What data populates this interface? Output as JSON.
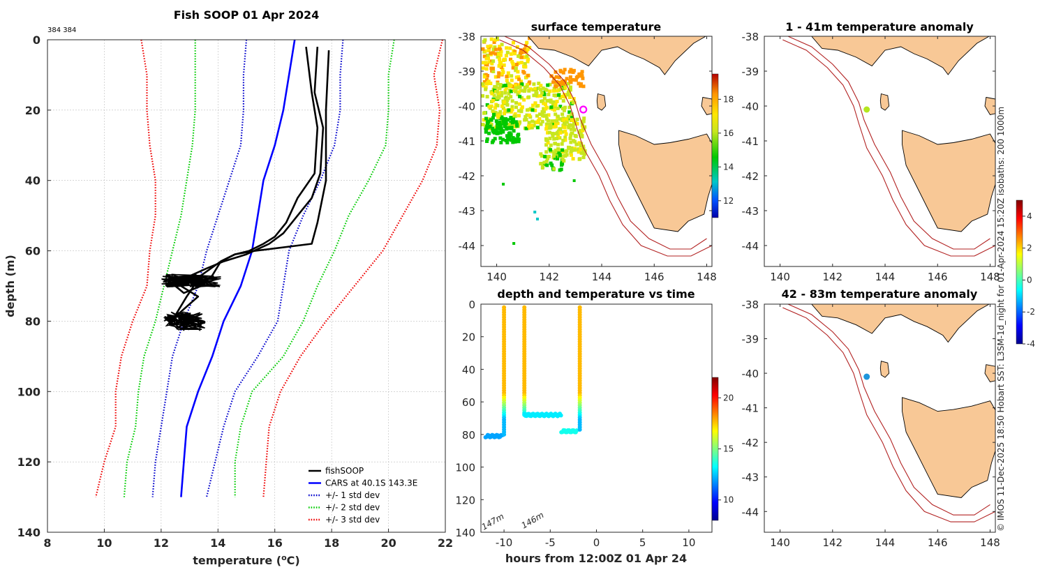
{
  "chart_data": [
    {
      "type": "line",
      "id": "profile",
      "title": "Fish SOOP 01 Apr 2024",
      "subtitle": "384 384",
      "xlabel": "temperature (",
      "xlabel_sup": "o",
      "xlabel_suffix": "C)",
      "ylabel": "depth (m)",
      "xlim": [
        8,
        22
      ],
      "ylim": [
        0,
        140
      ],
      "xticks": [
        8,
        10,
        12,
        14,
        16,
        18,
        20,
        22
      ],
      "yticks": [
        0,
        20,
        40,
        60,
        80,
        100,
        120,
        140
      ],
      "legend": [
        "fishSOOP",
        "CARS at 40.1S 143.3E",
        "+/- 1 std dev",
        "+/- 2 std dev",
        "+/- 3 std dev"
      ],
      "legend_position": "bottom-right",
      "series": [
        {
          "name": "CARS mean",
          "color": "#0000ff",
          "style": "solid",
          "points": [
            [
              16.7,
              0
            ],
            [
              16.5,
              10
            ],
            [
              16.3,
              20
            ],
            [
              16.0,
              30
            ],
            [
              15.6,
              40
            ],
            [
              15.4,
              50
            ],
            [
              15.2,
              60
            ],
            [
              14.8,
              70
            ],
            [
              14.2,
              80
            ],
            [
              13.8,
              90
            ],
            [
              13.3,
              100
            ],
            [
              12.9,
              110
            ],
            [
              12.8,
              120
            ],
            [
              12.7,
              130
            ]
          ]
        },
        {
          "name": "std1 low",
          "color": "#0000cc",
          "style": "dotted",
          "points": [
            [
              15.0,
              0
            ],
            [
              14.9,
              10
            ],
            [
              14.9,
              20
            ],
            [
              14.8,
              30
            ],
            [
              14.4,
              40
            ],
            [
              14.0,
              50
            ],
            [
              13.6,
              60
            ],
            [
              13.3,
              70
            ],
            [
              12.8,
              80
            ],
            [
              12.4,
              90
            ],
            [
              12.2,
              100
            ],
            [
              12.0,
              110
            ],
            [
              11.8,
              120
            ],
            [
              11.7,
              130
            ]
          ]
        },
        {
          "name": "std1 high",
          "color": "#0000cc",
          "style": "dotted",
          "points": [
            [
              18.4,
              0
            ],
            [
              18.3,
              10
            ],
            [
              18.3,
              20
            ],
            [
              18.1,
              30
            ],
            [
              17.6,
              40
            ],
            [
              17.0,
              50
            ],
            [
              16.5,
              60
            ],
            [
              16.3,
              70
            ],
            [
              16.1,
              80
            ],
            [
              15.4,
              90
            ],
            [
              14.6,
              100
            ],
            [
              14.2,
              110
            ],
            [
              13.9,
              120
            ],
            [
              13.6,
              130
            ]
          ]
        },
        {
          "name": "std2 low",
          "color": "#00cc00",
          "style": "dotted",
          "points": [
            [
              13.2,
              0
            ],
            [
              13.2,
              10
            ],
            [
              13.2,
              20
            ],
            [
              13.1,
              30
            ],
            [
              12.9,
              40
            ],
            [
              12.7,
              50
            ],
            [
              12.4,
              60
            ],
            [
              12.1,
              70
            ],
            [
              11.8,
              80
            ],
            [
              11.4,
              90
            ],
            [
              11.2,
              100
            ],
            [
              11.1,
              110
            ],
            [
              10.8,
              120
            ],
            [
              10.7,
              130
            ]
          ]
        },
        {
          "name": "std2 high",
          "color": "#00cc00",
          "style": "dotted",
          "points": [
            [
              20.2,
              0
            ],
            [
              20.0,
              10
            ],
            [
              20.0,
              20
            ],
            [
              19.9,
              30
            ],
            [
              19.3,
              40
            ],
            [
              18.6,
              50
            ],
            [
              18.1,
              60
            ],
            [
              17.5,
              70
            ],
            [
              17.0,
              80
            ],
            [
              16.3,
              90
            ],
            [
              15.2,
              100
            ],
            [
              14.8,
              110
            ],
            [
              14.6,
              120
            ],
            [
              14.6,
              130
            ]
          ]
        },
        {
          "name": "std3 low",
          "color": "#ee0000",
          "style": "dotted",
          "points": [
            [
              11.3,
              0
            ],
            [
              11.5,
              10
            ],
            [
              11.5,
              20
            ],
            [
              11.6,
              30
            ],
            [
              11.8,
              40
            ],
            [
              11.8,
              50
            ],
            [
              11.6,
              60
            ],
            [
              11.5,
              70
            ],
            [
              11.0,
              80
            ],
            [
              10.6,
              90
            ],
            [
              10.4,
              100
            ],
            [
              10.4,
              110
            ],
            [
              10.0,
              120
            ],
            [
              9.7,
              130
            ]
          ]
        },
        {
          "name": "std3 high",
          "color": "#ee0000",
          "style": "dotted",
          "points": [
            [
              21.9,
              0
            ],
            [
              21.6,
              10
            ],
            [
              21.8,
              20
            ],
            [
              21.7,
              30
            ],
            [
              21.2,
              40
            ],
            [
              20.5,
              50
            ],
            [
              19.8,
              60
            ],
            [
              18.8,
              70
            ],
            [
              17.8,
              80
            ],
            [
              16.9,
              90
            ],
            [
              16.2,
              100
            ],
            [
              15.8,
              110
            ],
            [
              15.7,
              120
            ],
            [
              15.6,
              130
            ]
          ]
        },
        {
          "name": "fishSOOP cast 1",
          "color": "#000000",
          "style": "solid",
          "points": [
            [
              17.5,
              2
            ],
            [
              17.4,
              15
            ],
            [
              17.7,
              25
            ],
            [
              17.6,
              38
            ],
            [
              17.3,
              45
            ],
            [
              16.8,
              50
            ],
            [
              16.3,
              55
            ],
            [
              15.8,
              58
            ],
            [
              15.0,
              61
            ],
            [
              14.2,
              63
            ],
            [
              13.6,
              65
            ],
            [
              12.5,
              69
            ],
            [
              13.3,
              73
            ],
            [
              12.6,
              78
            ],
            [
              12.3,
              81
            ]
          ]
        },
        {
          "name": "fishSOOP cast 2",
          "color": "#000000",
          "style": "solid",
          "points": [
            [
              17.9,
              3
            ],
            [
              17.8,
              20
            ],
            [
              17.8,
              40
            ],
            [
              17.5,
              52
            ],
            [
              17.3,
              58
            ],
            [
              15.3,
              60
            ],
            [
              14.6,
              61
            ],
            [
              14.1,
              63
            ],
            [
              13.8,
              67
            ],
            [
              13.4,
              70
            ],
            [
              12.8,
              72
            ],
            [
              12.2,
              68
            ]
          ]
        },
        {
          "name": "fishSOOP cast 3",
          "color": "#000000",
          "style": "solid",
          "points": [
            [
              17.1,
              2
            ],
            [
              17.3,
              15
            ],
            [
              17.5,
              25
            ],
            [
              17.4,
              38
            ],
            [
              16.8,
              45
            ],
            [
              16.4,
              52
            ],
            [
              16.0,
              56
            ],
            [
              15.6,
              58
            ],
            [
              15.1,
              60
            ],
            [
              14.6,
              61
            ],
            [
              14.1,
              63
            ],
            [
              13.4,
              67
            ],
            [
              12.9,
              73
            ],
            [
              12.6,
              77
            ],
            [
              12.3,
              81
            ]
          ]
        }
      ]
    },
    {
      "type": "scatter",
      "id": "time_depth",
      "title": "depth and temperature vs time",
      "xlabel": "hours from 12:00Z 01 Apr 24",
      "ylabel": "",
      "xlim": [
        -12.5,
        12.5
      ],
      "ylim": [
        0,
        140
      ],
      "xticks": [
        -10,
        -5,
        0,
        5,
        10
      ],
      "yticks": [
        0,
        20,
        40,
        60,
        80,
        100,
        120,
        140
      ],
      "annotations": [
        "147m",
        "146m"
      ],
      "colorbar": {
        "range": [
          8,
          22
        ],
        "ticks": [
          10,
          15,
          20
        ]
      },
      "segments": [
        {
          "x": [
            -12.0,
            -10.2
          ],
          "depth": 81,
          "temp": 12.0
        },
        {
          "x": [
            -10.0,
            -10.0
          ],
          "depth": [
            2,
            81
          ],
          "temp": "gradient"
        },
        {
          "x": [
            -7.8,
            -7.8
          ],
          "depth": [
            2,
            68
          ],
          "temp": "gradient"
        },
        {
          "x": [
            -7.8,
            -3.8
          ],
          "depth": 68,
          "temp": 13.0
        },
        {
          "x": [
            -3.8,
            -2.0
          ],
          "depth": 78,
          "temp": 13.5
        },
        {
          "x": [
            -1.8,
            -1.8
          ],
          "depth": [
            2,
            78
          ],
          "temp": "gradient"
        }
      ]
    },
    {
      "type": "map",
      "id": "sst",
      "title": "surface temperature",
      "xlim": [
        139.4,
        148.2
      ],
      "ylim": [
        -44.6,
        -38
      ],
      "xticks": [
        140,
        142,
        144,
        146,
        148
      ],
      "yticks": [
        -38,
        -39,
        -40,
        -41,
        -42,
        -43,
        -44
      ],
      "colorbar": {
        "range": [
          11,
          19.5
        ],
        "ticks": [
          12,
          14,
          16,
          18
        ]
      },
      "marker": {
        "lon": 143.3,
        "lat": -40.1
      }
    },
    {
      "type": "map",
      "id": "anom1",
      "title": "1 - 41m temperature anomaly",
      "xlim": [
        139.4,
        148.2
      ],
      "ylim": [
        -44.6,
        -38
      ],
      "xticks": [
        140,
        142,
        144,
        146,
        148
      ],
      "yticks": [
        -38,
        -39,
        -40,
        -41,
        -42,
        -43,
        -44
      ],
      "marker": {
        "lon": 143.3,
        "lat": -40.1,
        "color": "#b4e61e"
      }
    },
    {
      "type": "map",
      "id": "anom2",
      "title": "42 - 83m temperature anomaly",
      "xlim": [
        139.4,
        148.2
      ],
      "ylim": [
        -44.6,
        -38
      ],
      "xticks": [
        140,
        142,
        144,
        146,
        148
      ],
      "yticks": [
        -38,
        -39,
        -40,
        -41,
        -42,
        -43,
        -44
      ],
      "marker": {
        "lon": 143.3,
        "lat": -40.1,
        "color": "#1e96dc"
      }
    },
    {
      "type": "colorbar",
      "id": "anom_cbar",
      "range": [
        -4,
        5
      ],
      "ticks": [
        -4,
        -2,
        0,
        2,
        4
      ]
    }
  ],
  "side_note": "© IMOS 11-Dec-2025 18:50 Hobart SST: L3SM-1d_night for 01-Apr-2024 15:20Z isobaths: 200  1000m",
  "colors": {
    "land": "#f8c896",
    "isobath": "#b22222",
    "coast": "#000000"
  }
}
